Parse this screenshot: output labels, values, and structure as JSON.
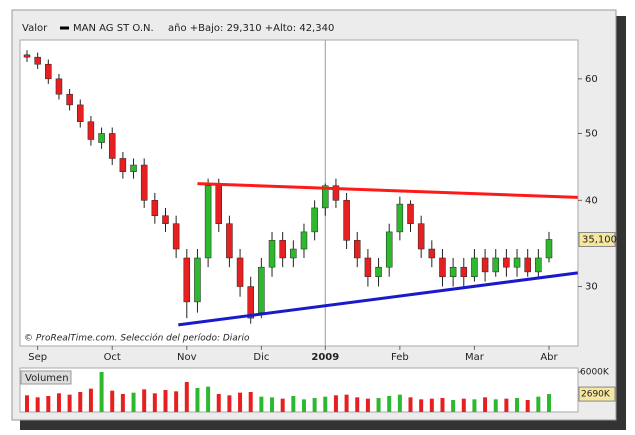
{
  "chart_data": [
    {
      "type": "candlestick",
      "header_label": "Valor",
      "title": "MAN AG ST O.N.",
      "subtitle": "año +Bajo: 29,310 +Alto: 42,340",
      "annotation": "© ProRealTime.com. Selección del período: Diario",
      "categories": [
        null,
        "Sep",
        null,
        null,
        null,
        null,
        null,
        null,
        "Oct",
        null,
        null,
        null,
        null,
        null,
        null,
        "Nov",
        null,
        null,
        null,
        null,
        null,
        null,
        "Dic",
        null,
        null,
        null,
        null,
        null,
        "2009",
        null,
        null,
        null,
        null,
        null,
        null,
        "Feb",
        null,
        null,
        null,
        null,
        null,
        null,
        "Mar",
        null,
        null,
        null,
        null,
        null,
        null,
        "Abr"
      ],
      "open": [
        65,
        64.5,
        63,
        60,
        57,
        55,
        52,
        48.5,
        50,
        46,
        44,
        45,
        40,
        38,
        37,
        33,
        28.5,
        33,
        42,
        37,
        33,
        30,
        27.5,
        32,
        35,
        33,
        34,
        36,
        39,
        42,
        40,
        35,
        33,
        31,
        32,
        36,
        39.5,
        37,
        34,
        33,
        31,
        32,
        31,
        33,
        31.5,
        33,
        32,
        33,
        31.5,
        33
      ],
      "high": [
        66,
        65.5,
        64,
        61,
        58,
        56,
        53,
        51,
        51,
        47,
        46,
        46,
        41,
        39,
        38,
        34,
        34,
        43,
        43,
        38,
        34,
        31,
        33,
        36,
        36,
        35,
        37,
        40,
        42.3,
        43,
        41,
        36,
        34,
        33,
        37,
        40.5,
        40,
        38,
        35,
        34,
        33,
        33,
        34,
        34,
        34,
        34,
        34,
        34,
        34,
        36
      ],
      "low": [
        63.5,
        62,
        59,
        56,
        54,
        51,
        48,
        47.5,
        45,
        43,
        43,
        39,
        37,
        36,
        33,
        27,
        27.5,
        32,
        36,
        32,
        29,
        26.5,
        27,
        31,
        32,
        32,
        33,
        35,
        38,
        39,
        34,
        32,
        30,
        30,
        31,
        35,
        36,
        33,
        32,
        30,
        30,
        30,
        30.5,
        30.5,
        31,
        31,
        31,
        31,
        31,
        32.5
      ],
      "close": [
        64.5,
        63,
        60,
        57,
        55,
        52,
        49,
        50,
        46,
        44,
        45,
        40,
        38,
        37,
        34,
        28.5,
        33,
        42,
        37,
        33,
        30,
        27,
        32,
        35,
        33,
        34,
        36,
        39,
        42,
        40,
        35,
        33,
        31,
        32,
        36,
        39.5,
        37,
        34,
        33,
        31,
        32,
        31,
        33,
        31.5,
        33,
        32,
        33,
        31.5,
        33,
        35.1
      ],
      "up_color": "#2eb82e",
      "down_color": "#e62020",
      "log_scale": true,
      "ylim": [
        24.6,
        68.3
      ],
      "yticks": [
        30,
        40,
        50,
        60
      ],
      "last_price": {
        "value": 35.1,
        "label": "35,100"
      },
      "x_divider_index": 28,
      "trendlines": [
        {
          "color": "#ff1a1a",
          "x": [
            16,
            51.7
          ],
          "y": [
            42.3,
            40.4
          ]
        },
        {
          "color": "#1a1acc",
          "x": [
            14.2,
            51.7
          ],
          "y": [
            26.4,
            31.4
          ]
        }
      ]
    },
    {
      "type": "bar",
      "title": "Volumen",
      "values": [
        2500,
        2200,
        2400,
        2800,
        2600,
        3000,
        3500,
        6000,
        3200,
        2700,
        2900,
        3400,
        2800,
        3300,
        3100,
        4500,
        3600,
        3800,
        2700,
        2500,
        2900,
        3000,
        2300,
        2200,
        2000,
        2400,
        1900,
        2100,
        2300,
        2500,
        2600,
        2200,
        2000,
        2100,
        2400,
        2600,
        2200,
        1900,
        2000,
        2100,
        1800,
        2000,
        1900,
        2200,
        1900,
        2000,
        2100,
        1800,
        2300,
        2690
      ],
      "ylim": [
        0,
        6600
      ],
      "yticks": [
        {
          "value": 6000,
          "label": "6000K"
        }
      ],
      "last_value": {
        "value": 2690,
        "label": "2690K"
      }
    }
  ]
}
